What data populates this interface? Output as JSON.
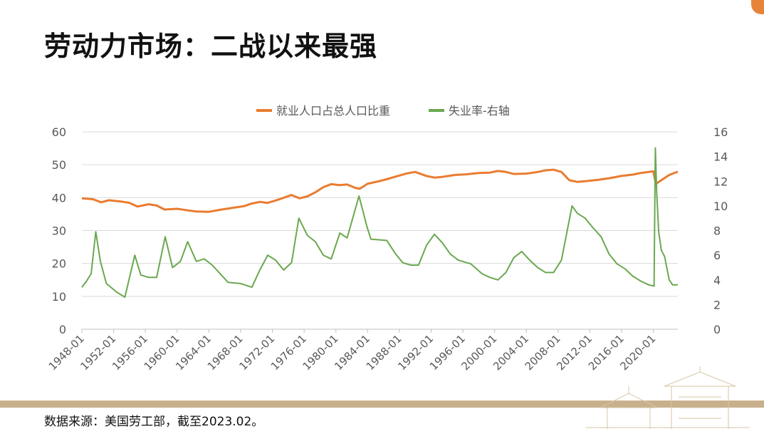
{
  "page": {
    "title": "劳动力市场：二战以来最强",
    "source": "数据来源：美国劳工部，截至2023.02。"
  },
  "colors": {
    "employment": "#e97c30",
    "unemployment": "#6aa84f",
    "grid": "#d9d9d9",
    "axis_text": "#595959",
    "band": "#c9b08d",
    "accent": "#e8843a"
  },
  "chart_data": {
    "type": "line",
    "x_ticks": [
      "1948-01",
      "1952-01",
      "1956-01",
      "1960-01",
      "1964-01",
      "1968-01",
      "1972-01",
      "1976-01",
      "1980-01",
      "1984-01",
      "1988-01",
      "1992-01",
      "1996-01",
      "2000-01",
      "2004-01",
      "2008-01",
      "2012-01",
      "2016-01",
      "2020-01"
    ],
    "x_range": [
      "1948-01",
      "2023-02"
    ],
    "y_left": {
      "range": [
        0,
        60
      ],
      "ticks": [
        "0",
        "10",
        "20",
        "30",
        "40",
        "50",
        "60"
      ]
    },
    "y_right": {
      "range": [
        0,
        16
      ],
      "ticks": [
        "0",
        "2",
        "4",
        "6",
        "8",
        "10",
        "12",
        "14",
        "16"
      ]
    },
    "legend_position": "top",
    "grid": true,
    "series": [
      {
        "name": "就业人口占总人口比重",
        "axis": "left",
        "points": [
          [
            "1948-01",
            39.8
          ],
          [
            "1949-06",
            39.5
          ],
          [
            "1950-06",
            38.6
          ],
          [
            "1951-06",
            39.2
          ],
          [
            "1953-01",
            38.8
          ],
          [
            "1954-01",
            38.4
          ],
          [
            "1955-01",
            37.3
          ],
          [
            "1956-06",
            38.0
          ],
          [
            "1957-06",
            37.6
          ],
          [
            "1958-06",
            36.4
          ],
          [
            "1960-01",
            36.6
          ],
          [
            "1961-06",
            36.1
          ],
          [
            "1962-06",
            35.8
          ],
          [
            "1964-01",
            35.7
          ],
          [
            "1965-06",
            36.3
          ],
          [
            "1967-01",
            36.9
          ],
          [
            "1968-06",
            37.4
          ],
          [
            "1969-06",
            38.2
          ],
          [
            "1970-06",
            38.7
          ],
          [
            "1971-06",
            38.4
          ],
          [
            "1973-01",
            39.6
          ],
          [
            "1974-06",
            40.8
          ],
          [
            "1975-06",
            39.8
          ],
          [
            "1976-06",
            40.4
          ],
          [
            "1977-06",
            41.6
          ],
          [
            "1978-06",
            43.2
          ],
          [
            "1979-06",
            44.1
          ],
          [
            "1980-06",
            43.8
          ],
          [
            "1981-06",
            44.0
          ],
          [
            "1982-06",
            43.0
          ],
          [
            "1983-01",
            42.7
          ],
          [
            "1984-01",
            44.2
          ],
          [
            "1985-06",
            45.0
          ],
          [
            "1986-06",
            45.6
          ],
          [
            "1987-06",
            46.3
          ],
          [
            "1989-01",
            47.4
          ],
          [
            "1990-01",
            47.8
          ],
          [
            "1991-06",
            46.6
          ],
          [
            "1992-06",
            46.1
          ],
          [
            "1993-06",
            46.3
          ],
          [
            "1995-01",
            46.9
          ],
          [
            "1996-06",
            47.1
          ],
          [
            "1998-01",
            47.5
          ],
          [
            "1999-06",
            47.6
          ],
          [
            "2000-06",
            48.1
          ],
          [
            "2001-06",
            47.8
          ],
          [
            "2002-06",
            47.2
          ],
          [
            "2004-01",
            47.3
          ],
          [
            "2005-06",
            47.8
          ],
          [
            "2006-06",
            48.3
          ],
          [
            "2007-06",
            48.5
          ],
          [
            "2008-06",
            47.8
          ],
          [
            "2009-06",
            45.3
          ],
          [
            "2010-06",
            44.8
          ],
          [
            "2011-06",
            45.0
          ],
          [
            "2013-01",
            45.4
          ],
          [
            "2014-06",
            45.9
          ],
          [
            "2016-01",
            46.6
          ],
          [
            "2017-06",
            47.0
          ],
          [
            "2018-06",
            47.5
          ],
          [
            "2019-06",
            47.8
          ],
          [
            "2020-01",
            48.0
          ],
          [
            "2020-03",
            45.9
          ],
          [
            "2020-05",
            44.2
          ],
          [
            "2021-01",
            45.3
          ],
          [
            "2022-01",
            46.9
          ],
          [
            "2023-02",
            47.9
          ]
        ]
      },
      {
        "name": "失业率-右轴",
        "axis": "right",
        "points": [
          [
            "1948-01",
            3.4
          ],
          [
            "1948-08",
            3.9
          ],
          [
            "1949-03",
            4.5
          ],
          [
            "1949-10",
            7.9
          ],
          [
            "1950-05",
            5.5
          ],
          [
            "1951-02",
            3.7
          ],
          [
            "1952-06",
            3.0
          ],
          [
            "1953-06",
            2.6
          ],
          [
            "1954-09",
            6.0
          ],
          [
            "1955-06",
            4.4
          ],
          [
            "1956-06",
            4.2
          ],
          [
            "1957-06",
            4.2
          ],
          [
            "1958-07",
            7.5
          ],
          [
            "1959-06",
            5.0
          ],
          [
            "1960-06",
            5.5
          ],
          [
            "1961-05",
            7.1
          ],
          [
            "1962-06",
            5.5
          ],
          [
            "1963-06",
            5.7
          ],
          [
            "1964-06",
            5.2
          ],
          [
            "1965-06",
            4.5
          ],
          [
            "1966-06",
            3.8
          ],
          [
            "1968-01",
            3.7
          ],
          [
            "1969-06",
            3.4
          ],
          [
            "1970-06",
            4.8
          ],
          [
            "1971-06",
            6.0
          ],
          [
            "1972-06",
            5.6
          ],
          [
            "1973-06",
            4.8
          ],
          [
            "1974-06",
            5.4
          ],
          [
            "1975-05",
            9.0
          ],
          [
            "1976-06",
            7.6
          ],
          [
            "1977-06",
            7.1
          ],
          [
            "1978-06",
            6.0
          ],
          [
            "1979-06",
            5.7
          ],
          [
            "1980-07",
            7.8
          ],
          [
            "1981-06",
            7.4
          ],
          [
            "1982-12",
            10.8
          ],
          [
            "1983-12",
            8.3
          ],
          [
            "1984-06",
            7.3
          ],
          [
            "1986-06",
            7.2
          ],
          [
            "1987-06",
            6.2
          ],
          [
            "1988-06",
            5.4
          ],
          [
            "1989-06",
            5.2
          ],
          [
            "1990-06",
            5.2
          ],
          [
            "1991-06",
            6.8
          ],
          [
            "1992-06",
            7.7
          ],
          [
            "1993-06",
            7.0
          ],
          [
            "1994-06",
            6.1
          ],
          [
            "1995-06",
            5.6
          ],
          [
            "1997-01",
            5.3
          ],
          [
            "1998-06",
            4.5
          ],
          [
            "1999-06",
            4.2
          ],
          [
            "2000-06",
            4.0
          ],
          [
            "2001-06",
            4.6
          ],
          [
            "2002-06",
            5.8
          ],
          [
            "2003-06",
            6.3
          ],
          [
            "2004-06",
            5.6
          ],
          [
            "2005-06",
            5.0
          ],
          [
            "2006-06",
            4.6
          ],
          [
            "2007-06",
            4.6
          ],
          [
            "2008-06",
            5.6
          ],
          [
            "2009-10",
            10.0
          ],
          [
            "2010-06",
            9.4
          ],
          [
            "2011-06",
            9.0
          ],
          [
            "2012-06",
            8.2
          ],
          [
            "2013-06",
            7.5
          ],
          [
            "2014-06",
            6.1
          ],
          [
            "2015-06",
            5.3
          ],
          [
            "2016-06",
            4.9
          ],
          [
            "2017-06",
            4.3
          ],
          [
            "2018-06",
            3.9
          ],
          [
            "2019-06",
            3.6
          ],
          [
            "2020-02",
            3.5
          ],
          [
            "2020-04",
            14.7
          ],
          [
            "2020-06",
            11.1
          ],
          [
            "2020-09",
            7.9
          ],
          [
            "2021-01",
            6.4
          ],
          [
            "2021-06",
            5.9
          ],
          [
            "2022-01",
            4.0
          ],
          [
            "2022-06",
            3.6
          ],
          [
            "2023-02",
            3.6
          ]
        ]
      }
    ]
  }
}
